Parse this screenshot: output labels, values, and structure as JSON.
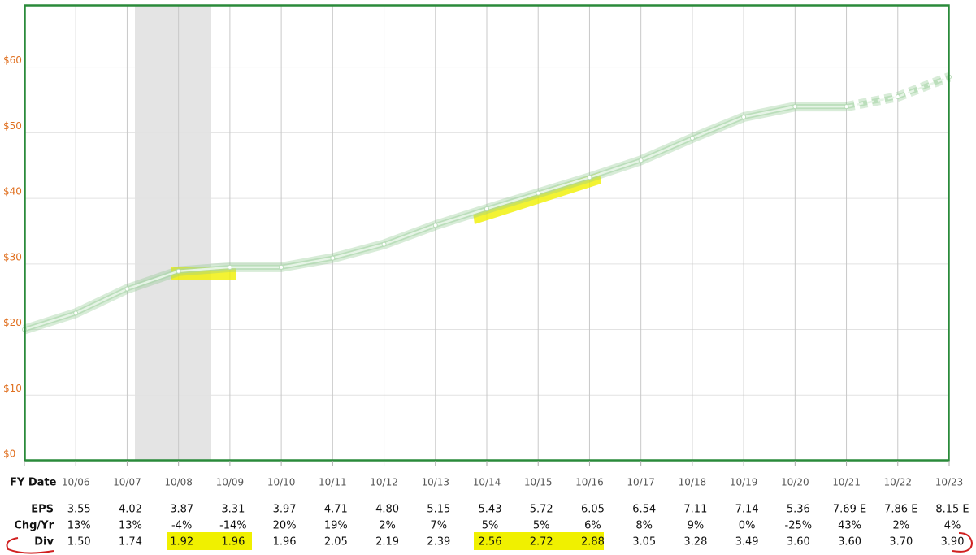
{
  "chart_data": {
    "type": "line",
    "x_label": "FY Date",
    "categories": [
      null,
      "10/06",
      "10/07",
      "10/08",
      "10/09",
      "10/10",
      "10/11",
      "10/12",
      "10/13",
      "10/14",
      "10/15",
      "10/16",
      "10/17",
      "10/18",
      "10/19",
      "10/20",
      "10/21",
      "10/22",
      "10/23"
    ],
    "series": [
      {
        "color": "#e6f4e6",
        "dash": false,
        "values": [
          20,
          22.5,
          26.2,
          28.9,
          29.5,
          29.5,
          30.9,
          33,
          35.9,
          38.4,
          40.8,
          43.2,
          45.8,
          49.2,
          52.4,
          54,
          54,
          null,
          null
        ]
      },
      {
        "color": "#e6f4e6",
        "dash": true,
        "values": [
          null,
          null,
          null,
          null,
          null,
          null,
          null,
          null,
          null,
          null,
          null,
          null,
          null,
          null,
          null,
          null,
          54,
          55.5,
          58.5
        ]
      }
    ],
    "ylim": [
      0,
      69.5
    ],
    "yticks": [
      {
        "value": 0,
        "label": "$0"
      },
      {
        "value": 10,
        "label": "$10"
      },
      {
        "value": 20,
        "label": "$20"
      },
      {
        "value": 30,
        "label": "$30"
      },
      {
        "value": 40,
        "label": "$40"
      },
      {
        "value": 50,
        "label": "$50"
      },
      {
        "value": 60,
        "label": "$60"
      }
    ],
    "grid": true
  },
  "table": {
    "rows": [
      {
        "label": "EPS",
        "values": [
          "3.55",
          "4.02",
          "3.87",
          "3.31",
          "3.97",
          "4.71",
          "4.80",
          "5.15",
          "5.43",
          "5.72",
          "6.05",
          "6.54",
          "7.11",
          "7.14",
          "5.36",
          "7.69 E",
          "7.86 E",
          "8.15 E"
        ]
      },
      {
        "label": "Chg/Yr",
        "values": [
          "13%",
          "13%",
          "-4%",
          "-14%",
          "20%",
          "19%",
          "2%",
          "7%",
          "5%",
          "5%",
          "6%",
          "8%",
          "9%",
          "0%",
          "-25%",
          "43%",
          "2%",
          "4%"
        ]
      },
      {
        "label": "Div",
        "values": [
          "1.50",
          "1.74",
          "1.92",
          "1.96",
          "1.96",
          "2.05",
          "2.19",
          "2.39",
          "2.56",
          "2.72",
          "2.88",
          "3.05",
          "3.28",
          "3.49",
          "3.60",
          "3.60",
          "3.70",
          "3.90"
        ]
      }
    ]
  }
}
